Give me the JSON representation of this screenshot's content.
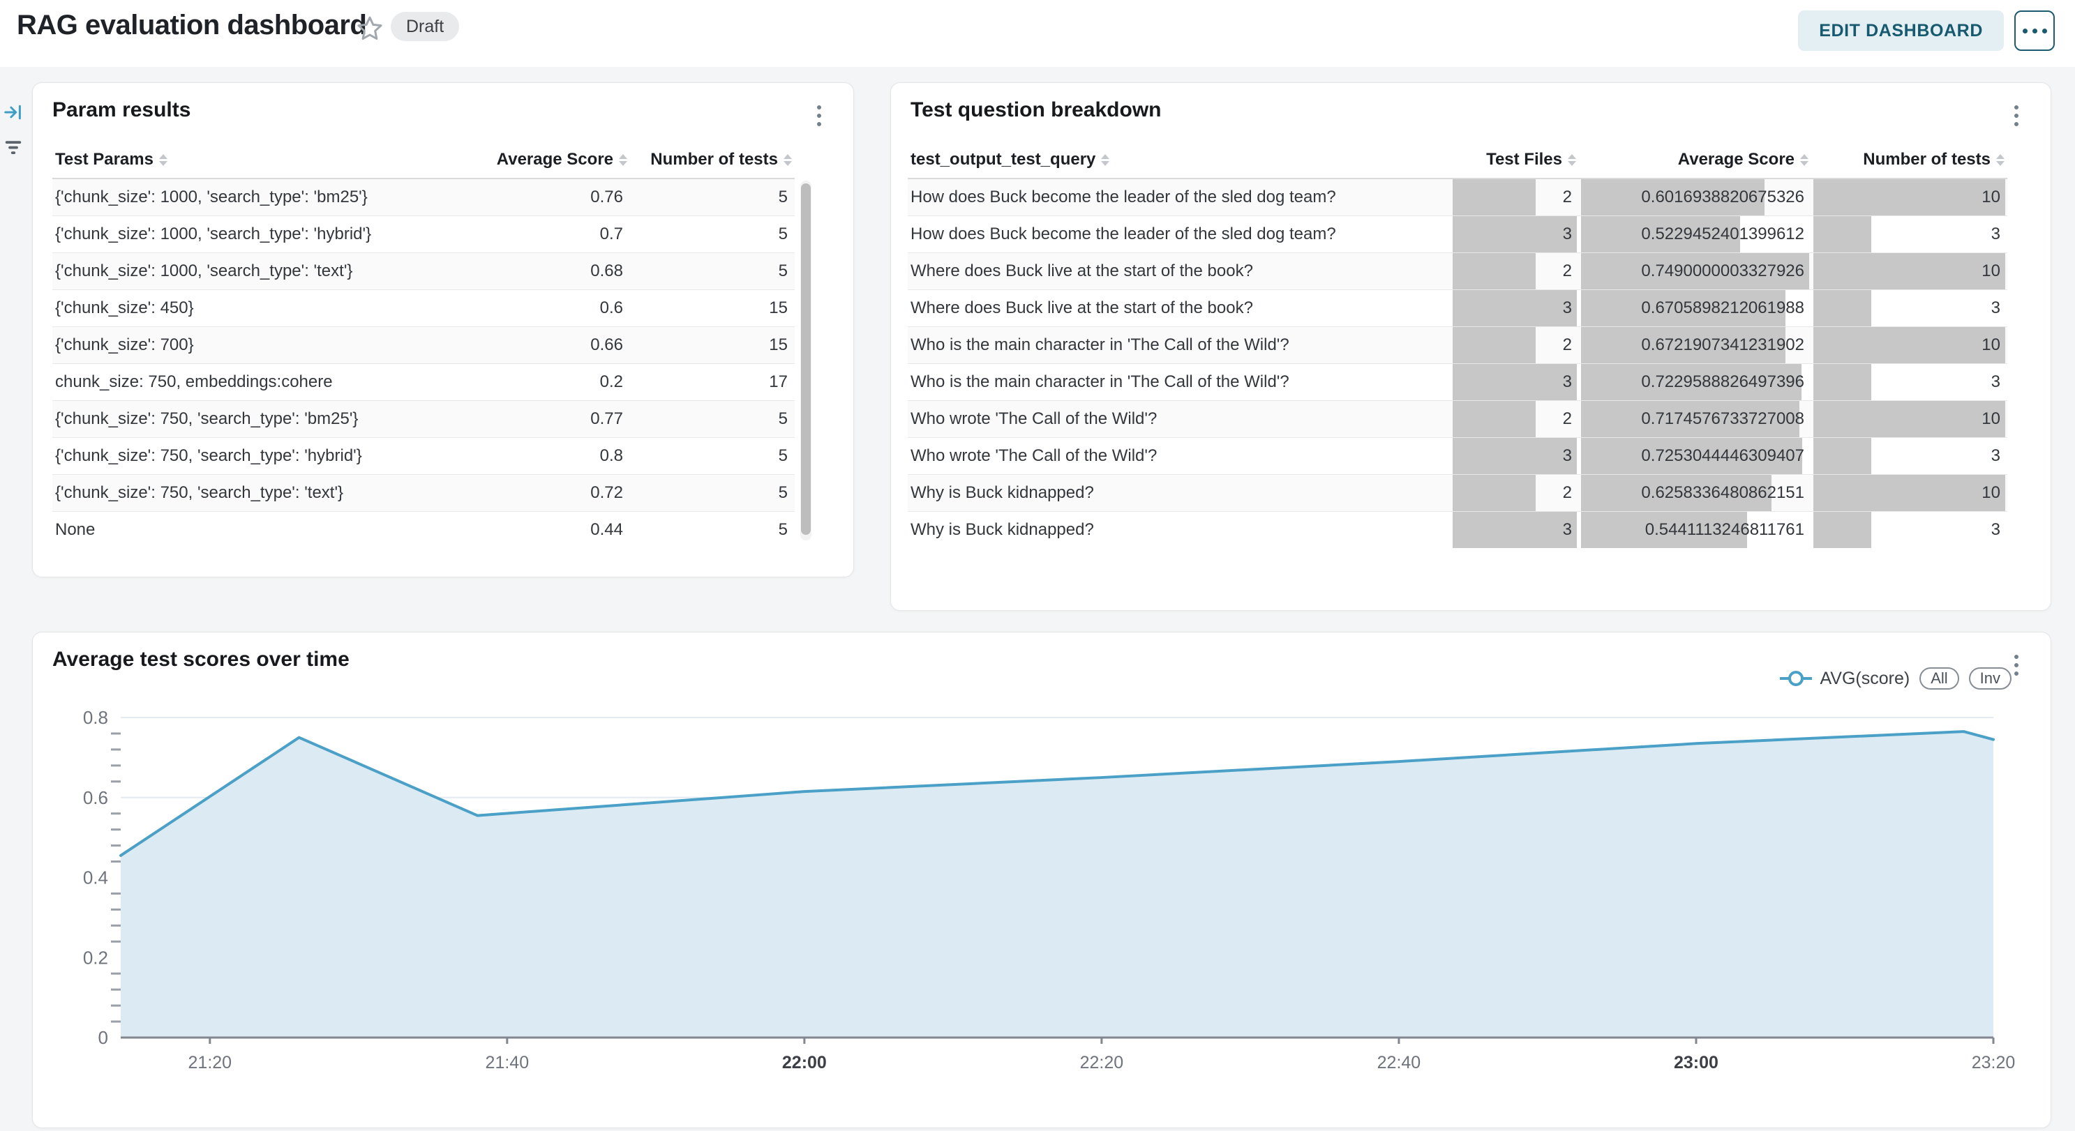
{
  "colors": {
    "accent_blue": "#4aa0c6",
    "area_fill": "#dcebf3",
    "bar_gray": "#c7c7c7",
    "grid_line": "#e4eaf1",
    "axis_line": "#82878f",
    "minor_tick": "#9aa0a8",
    "edit_button_bg": "#e4eff4",
    "edit_button_text": "#17596f"
  },
  "header": {
    "title": "RAG evaluation dashboard",
    "status_badge": "Draft",
    "edit_button": "EDIT DASHBOARD",
    "icons": {
      "favorite": "star-outline",
      "more": "ellipsis"
    }
  },
  "left_rail": {
    "icons": [
      "collapse-panel-icon",
      "filter-list-icon"
    ]
  },
  "param_results": {
    "title": "Param results",
    "columns": [
      "Test Params",
      "Average Score",
      "Number of tests"
    ],
    "rows": [
      {
        "params": "{'chunk_size': 1000, 'search_type': 'bm25'}",
        "avg_score": "0.76",
        "num_tests": "5"
      },
      {
        "params": "{'chunk_size': 1000, 'search_type': 'hybrid'}",
        "avg_score": "0.7",
        "num_tests": "5"
      },
      {
        "params": "{'chunk_size': 1000, 'search_type': 'text'}",
        "avg_score": "0.68",
        "num_tests": "5"
      },
      {
        "params": "{'chunk_size': 450}",
        "avg_score": "0.6",
        "num_tests": "15"
      },
      {
        "params": "{'chunk_size': 700}",
        "avg_score": "0.66",
        "num_tests": "15"
      },
      {
        "params": "chunk_size: 750, embeddings:cohere",
        "avg_score": "0.2",
        "num_tests": "17"
      },
      {
        "params": "{'chunk_size': 750, 'search_type': 'bm25'}",
        "avg_score": "0.77",
        "num_tests": "5"
      },
      {
        "params": "{'chunk_size': 750, 'search_type': 'hybrid'}",
        "avg_score": "0.8",
        "num_tests": "5"
      },
      {
        "params": "{'chunk_size': 750, 'search_type': 'text'}",
        "avg_score": "0.72",
        "num_tests": "5"
      },
      {
        "params": "None",
        "avg_score": "0.44",
        "num_tests": "5"
      }
    ]
  },
  "question_breakdown": {
    "title": "Test question breakdown",
    "columns": [
      "test_output_test_query",
      "Test Files",
      "Average Score",
      "Number of tests"
    ],
    "rows": [
      {
        "query": "How does Buck become the leader of the sled dog team?",
        "test_files": "2",
        "avg_score": "0.6016938820675326",
        "num_tests": "10"
      },
      {
        "query": "How does Buck become the leader of the sled dog team?",
        "test_files": "3",
        "avg_score": "0.5229452401399612",
        "num_tests": "3"
      },
      {
        "query": "Where does Buck live at the start of the book?",
        "test_files": "2",
        "avg_score": "0.7490000003327926",
        "num_tests": "10"
      },
      {
        "query": "Where does Buck live at the start of the book?",
        "test_files": "3",
        "avg_score": "0.6705898212061988",
        "num_tests": "3"
      },
      {
        "query": "Who is the main character in 'The Call of the Wild'?",
        "test_files": "2",
        "avg_score": "0.6721907341231902",
        "num_tests": "10"
      },
      {
        "query": "Who is the main character in 'The Call of the Wild'?",
        "test_files": "3",
        "avg_score": "0.7229588826497396",
        "num_tests": "3"
      },
      {
        "query": "Who wrote 'The Call of the Wild'?",
        "test_files": "2",
        "avg_score": "0.7174576733727008",
        "num_tests": "10"
      },
      {
        "query": "Who wrote 'The Call of the Wild'?",
        "test_files": "3",
        "avg_score": "0.7253044446309407",
        "num_tests": "3"
      },
      {
        "query": "Why is Buck kidnapped?",
        "test_files": "2",
        "avg_score": "0.6258336480862151",
        "num_tests": "10"
      },
      {
        "query": "Why is Buck kidnapped?",
        "test_files": "3",
        "avg_score": "0.5441113246811761",
        "num_tests": "3"
      }
    ]
  },
  "scores_chart": {
    "title": "Average test scores over time",
    "legend_label": "AVG(score)",
    "legend_buttons": [
      "All",
      "Inv"
    ],
    "chart_data": {
      "type": "area",
      "series": "AVG(score)",
      "x": [
        "21:14",
        "21:26",
        "21:38",
        "22:00",
        "22:20",
        "22:40",
        "23:00",
        "23:18",
        "23:20"
      ],
      "values": [
        0.455,
        0.75,
        0.555,
        0.615,
        0.65,
        0.69,
        0.735,
        0.765,
        0.745
      ],
      "xlabel": "",
      "ylabel": "",
      "ylim": [
        0,
        0.8
      ],
      "yticks": [
        0,
        0.2,
        0.4,
        0.6,
        0.8
      ],
      "y_minor_step": 0.04,
      "xticks": [
        "21:20",
        "21:40",
        "22:00",
        "22:20",
        "22:40",
        "23:00",
        "23:20"
      ],
      "bold_xticks": [
        "22:00",
        "23:00"
      ],
      "x_range": [
        "21:14",
        "23:20"
      ],
      "grid": "horizontal",
      "legend_position": "top-right"
    }
  }
}
